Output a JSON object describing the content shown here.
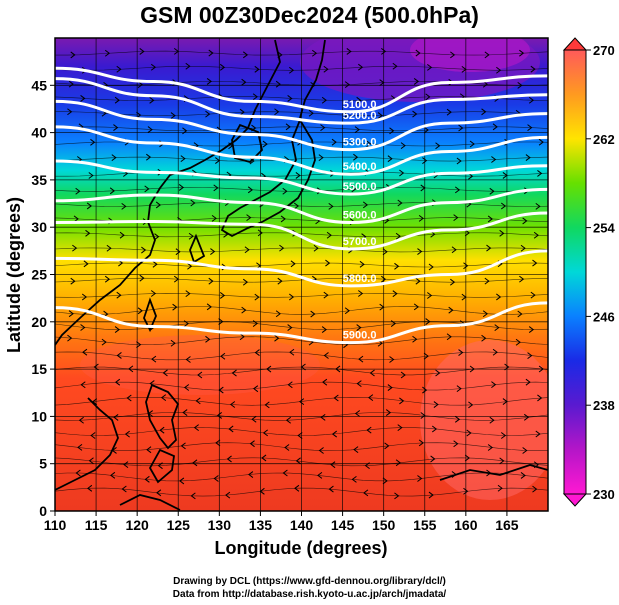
{
  "title": "GSM 00Z30Dec2024 (500.0hPa)",
  "axes": {
    "xlabel": "Longitude (degrees)",
    "ylabel": "Latitude  (degrees)",
    "x_range": [
      110,
      170
    ],
    "y_range": [
      0,
      50
    ],
    "x_ticks": [
      "110",
      "115",
      "120",
      "125",
      "130",
      "135",
      "140",
      "145",
      "150",
      "155",
      "160",
      "165"
    ],
    "y_ticks": [
      "0",
      "5",
      "10",
      "15",
      "20",
      "25",
      "30",
      "35",
      "40",
      "45"
    ]
  },
  "colorbar": {
    "labels": [
      "270",
      "262",
      "254",
      "246",
      "238",
      "230"
    ],
    "range": [
      230,
      270
    ],
    "colors": [
      "#ff5a5a",
      "#ff9a20",
      "#ffe400",
      "#66e000",
      "#10d860",
      "#00d8d8",
      "#0a80ff",
      "#1a2ae6",
      "#5a1ad0",
      "#b416c8",
      "#ff18d2"
    ]
  },
  "contours": [
    {
      "label": "5100.0",
      "lat": [
        46.8,
        45.4,
        43.3,
        42.2,
        45.3,
        46.0
      ]
    },
    {
      "label": "5200.0",
      "lat": [
        45.7,
        43.9,
        41.7,
        41.0,
        43.5,
        44.0
      ]
    },
    {
      "label": "5300.0",
      "lat": [
        43.3,
        41.4,
        39.8,
        38.2,
        41.0,
        42.0
      ]
    },
    {
      "label": "5400.0",
      "lat": [
        40.6,
        38.9,
        37.4,
        35.6,
        38.0,
        39.5
      ]
    },
    {
      "label": "5500.0",
      "lat": [
        37.0,
        35.8,
        35.2,
        33.5,
        35.7,
        36.5
      ]
    },
    {
      "label": "5600.0",
      "lat": [
        32.8,
        33.4,
        32.6,
        30.5,
        32.6,
        34.0
      ]
    },
    {
      "label": "5700.0",
      "lat": [
        30.5,
        30.6,
        30.3,
        27.7,
        29.7,
        31.5
      ]
    },
    {
      "label": "5800.0",
      "lat": [
        26.7,
        26.5,
        25.6,
        23.8,
        25.0,
        27.5
      ]
    },
    {
      "label": "5900.0",
      "lat": [
        21.5,
        19.5,
        18.8,
        17.8,
        19.6,
        22.0
      ]
    }
  ],
  "contour_labels_shown": [
    "5100.0",
    "5200.0",
    "5300.0",
    "5400.0",
    "5500.0",
    "5600.0",
    "5900.0",
    "5900.0"
  ],
  "credit": {
    "line1": "Drawing by DCL (https://www.gfd-dennou.org/library/dcl/)",
    "line2": "Data from http://database.rish.kyoto-u.ac.jp/arch/jmadata/"
  }
}
